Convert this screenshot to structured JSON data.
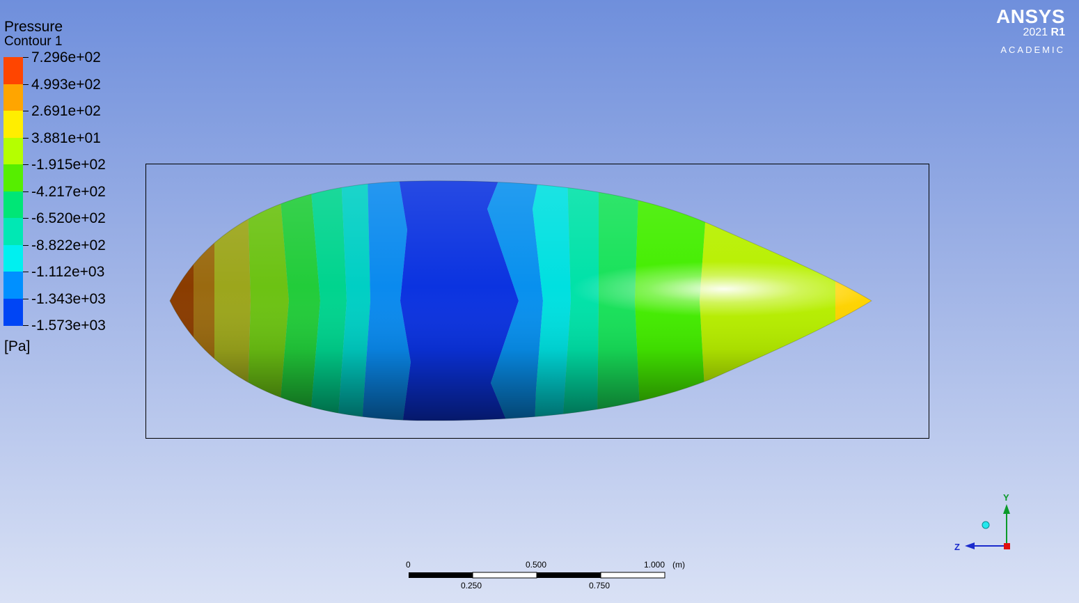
{
  "legend": {
    "title": "Pressure",
    "subtitle": "Contour 1",
    "unit": "[Pa]",
    "levels": [
      "7.296e+02",
      "4.993e+02",
      "2.691e+02",
      "3.881e+01",
      "-1.915e+02",
      "-4.217e+02",
      "-6.520e+02",
      "-8.822e+02",
      "-1.112e+03",
      "-1.343e+03",
      "-1.573e+03"
    ],
    "colors": [
      "#ff4500",
      "#ffa500",
      "#ffee00",
      "#b5ff00",
      "#56ee00",
      "#00e676",
      "#00e8b4",
      "#00f0f0",
      "#0090ff",
      "#0045f5"
    ]
  },
  "logo": {
    "brand": "ANSYS",
    "version_year": "2021",
    "version_release": "R1",
    "edition": "ACADEMIC"
  },
  "scale": {
    "major_labels": [
      "0",
      "0.500",
      "1.000"
    ],
    "minor_labels": [
      "0.250",
      "0.750"
    ],
    "unit": "(m)"
  },
  "triad": {
    "y_label": "Y",
    "z_label": "Z"
  }
}
